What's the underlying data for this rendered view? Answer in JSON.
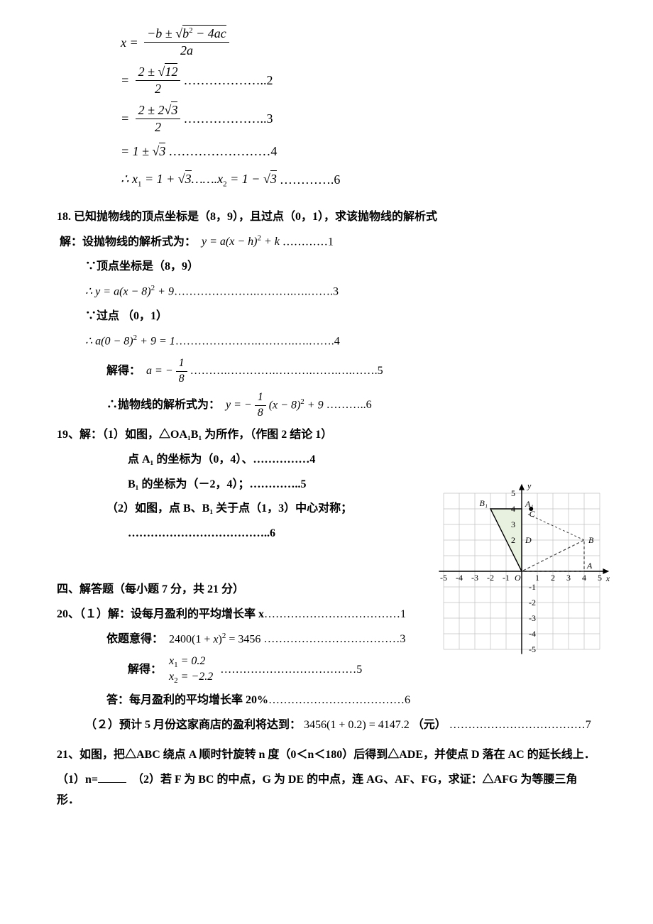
{
  "formula17": {
    "line1_lhs": "x =",
    "line1_num": "−b ± √(b² − 4ac)",
    "line1_den": "2a",
    "line2_num": "2 ± √12",
    "line2_den": "2",
    "line2_dots": "………………..2",
    "line3_num": "2 ± 2√3",
    "line3_den": "2",
    "line3_dots": "………………..3",
    "line4": "= 1 ± √3",
    "line4_dots": "……………………4",
    "line5_prefix": "∴ x",
    "line5_a": " = 1 + √3…….x",
    "line5_b": " = 1 − √3………….6"
  },
  "p18": {
    "title": "18.  已知抛物线的顶点坐标是（8，9），且过点（0，1），求该抛物线的解析式",
    "sol_label": "解：设抛物线的解析式为：",
    "eq1": "y = a(x − h)² + k",
    "eq1_dots": "…………1",
    "vertex": "∵顶点坐标是（8，9）",
    "eq2": "∴ y = a(x − 8)² + 9",
    "eq2_dots": "………………….……….….…….3",
    "through": "∵过点（0，1）",
    "eq3": "∴ a(0 − 8)² + 9 = 1",
    "eq3_dots": "………………….……….….…….4",
    "solve_label": "解得：",
    "eq4_lhs": "a = −",
    "eq4_frac_num": "1",
    "eq4_frac_den": "8",
    "eq4_dots": "……….………….……….…….….…….5",
    "final_label": "∴抛物线的解析式为：",
    "eq5_lhs": "y = −",
    "eq5_frac_num": "1",
    "eq5_frac_den": "8",
    "eq5_rhs": "(x − 8)² + 9",
    "eq5_dots": "………..6"
  },
  "p19": {
    "title": "19、解：（1）如图，△OA₁B₁ 为所作，（作图 2 结论 1）",
    "line1": "点 A₁ 的坐标为（0，4）、……………4",
    "line2": "B₁ 的坐标为（－2，4）；…………..5",
    "line3": "（2）如图，点 B、B₁ 关于点（1，3）中心对称；",
    "line4": "………………………………..6"
  },
  "section4": "四、解答题（每小题 7 分，共 21 分）",
  "p20": {
    "title": "20、（１）解：设每月盈利的平均增长率 x",
    "title_dots": "………………………………1",
    "yi_label": "依题意得：",
    "eq1": "2400(1 + x)² = 3456",
    "eq1_dots": "………………………………3",
    "solve_label": "解得：",
    "x1": "x₁ = 0.2",
    "x2": "x₂ = −2.2",
    "solve_dots": "………………………………5",
    "answer": "答：每月盈利的平均增长率 20%",
    "answer_dots": "………………………………6",
    "part2_label": "（２）预计 5 月份这家商店的盈利将达到：",
    "part2_eq": "3456(1 + 0.2) = 4147.2",
    "part2_unit": "（元）",
    "part2_dots": "………………………………7"
  },
  "p21": {
    "line1": "21、如图，把△ABC 绕点 A 顺时针旋转 n 度（0＜n＜180）后得到△ADE，并使点 D 落在 AC 的延长线上．",
    "line2_a": "（1）n=",
    "line2_b": "（2）若 F 为 BC 的中点，G 为 DE 的中点，连 AG、AF、FG，求证：△AFG 为等腰三角形．"
  },
  "figure": {
    "grid_color": "#c0c0c0",
    "axis_color": "#000000",
    "text_color": "#000000",
    "arrow_color": "#000000",
    "dash_color": "#404040",
    "fill_color": "#e8f0e0",
    "x_range": [
      -5,
      5
    ],
    "y_range": [
      -5,
      5
    ],
    "cell": 22,
    "x_labels": [
      -5,
      -4,
      -3,
      -2,
      -1,
      1,
      2,
      3,
      4,
      5
    ],
    "y_labels": [
      -1,
      -2,
      -3,
      -4,
      -5,
      2,
      3,
      4,
      5
    ],
    "O_label": "O",
    "A_label": "A",
    "B_label": "B",
    "A1_label": "A₁",
    "B1_label": "B₁",
    "C_label": "C",
    "D_label": "D",
    "x_axis_label": "x",
    "y_axis_label": "y",
    "points": {
      "O": [
        0,
        0
      ],
      "A": [
        4,
        0
      ],
      "B": [
        4,
        2
      ],
      "A1": [
        0,
        4
      ],
      "B1": [
        -2,
        4
      ],
      "C": [
        0.3,
        3.6
      ],
      "D": [
        0,
        2
      ]
    }
  }
}
